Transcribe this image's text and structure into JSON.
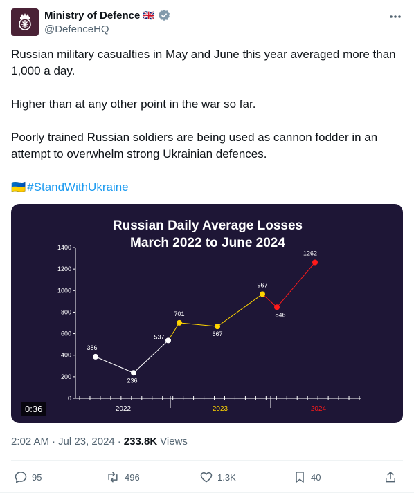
{
  "author": {
    "name": "Ministry of Defence",
    "flag": "🇬🇧",
    "handle": "@DefenceHQ",
    "verified_color": "#829aab"
  },
  "tweet": {
    "paragraphs": [
      "Russian military casualties in May and June this year averaged more than 1,000 a day.",
      "Higher than at any other point in the war so far.",
      "Poorly trained Russian soldiers are being used as cannon fodder in an attempt to overwhelm strong Ukrainian defences."
    ],
    "hashtag_flag": "🇺🇦",
    "hashtag": "#StandWithUkraine"
  },
  "media": {
    "duration": "0:36",
    "background": "#1e1636"
  },
  "chart_data": {
    "type": "line",
    "title": "Russian Daily Average Losses",
    "subtitle": "March 2022 to June 2024",
    "ylim": [
      0,
      1400
    ],
    "yticks": [
      "0",
      "200",
      "400",
      "600",
      "800",
      "1000",
      "1200",
      "1400"
    ],
    "x_groups": [
      {
        "label": "2022",
        "color": "#ffffff"
      },
      {
        "label": "2023",
        "color": "#ffd400"
      },
      {
        "label": "2024",
        "color": "#ff1a1a"
      }
    ],
    "points": [
      {
        "value": 386,
        "label": "386",
        "color": "#ffffff"
      },
      {
        "value": 236,
        "label": "236",
        "color": "#ffffff"
      },
      {
        "value": 537,
        "label": "537",
        "color": "#ffffff"
      },
      {
        "value": 701,
        "label": "701",
        "color": "#ffd400"
      },
      {
        "value": 667,
        "label": "667",
        "color": "#ffd400"
      },
      {
        "value": 967,
        "label": "967",
        "color": "#ffd400"
      },
      {
        "value": 846,
        "label": "846",
        "color": "#ff1a1a"
      },
      {
        "value": 1262,
        "label": "1262",
        "color": "#ff1a1a"
      }
    ]
  },
  "meta": {
    "time": "2:02 AM",
    "separator": "·",
    "date": "Jul 23, 2024",
    "separator2": "·",
    "views_count": "233.8K",
    "views_label": "Views"
  },
  "actions": {
    "replies": "95",
    "reposts": "496",
    "likes": "1.3K",
    "bookmarks": "40"
  }
}
